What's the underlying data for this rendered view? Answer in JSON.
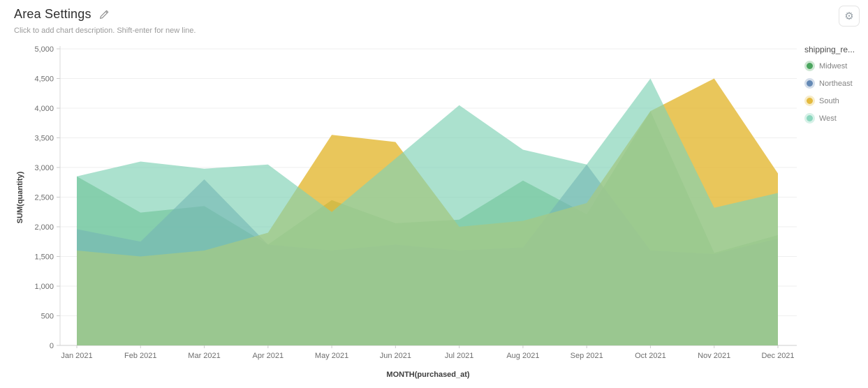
{
  "header": {
    "title": "Area Settings",
    "subtitle": "Click to add chart description. Shift-enter for new line."
  },
  "toolbar": {
    "settings_icon": "gear-icon"
  },
  "legend": {
    "title": "shipping_re...",
    "items": [
      {
        "label": "Midwest",
        "color": "#4AA55E",
        "ring": "rgba(74,165,94,0.28)"
      },
      {
        "label": "Northeast",
        "color": "#6489B5",
        "ring": "rgba(100,137,181,0.28)"
      },
      {
        "label": "South",
        "color": "#E4BA3E",
        "ring": "rgba(228,186,62,0.28)"
      },
      {
        "label": "West",
        "color": "#8CD7BE",
        "ring": "rgba(140,215,190,0.35)"
      }
    ]
  },
  "chart_data": {
    "type": "area",
    "overlap": true,
    "title": "",
    "xlabel": "MONTH(purchased_at)",
    "ylabel": "SUM(quantity)",
    "categories": [
      "Jan 2021",
      "Feb 2021",
      "Mar 2021",
      "Apr 2021",
      "May 2021",
      "Jun 2021",
      "Jul 2021",
      "Aug 2021",
      "Sep 2021",
      "Oct 2021",
      "Nov 2021",
      "Dec 2021"
    ],
    "series": [
      {
        "name": "Midwest",
        "color": "#52A863",
        "fill_opacity": 0.62,
        "values": [
          2850,
          2240,
          2350,
          1700,
          2450,
          2060,
          2120,
          2780,
          2210,
          3950,
          1560,
          1860
        ]
      },
      {
        "name": "Northeast",
        "color": "#5E83B3",
        "fill_opacity": 0.62,
        "values": [
          1960,
          1750,
          2800,
          1700,
          1600,
          1700,
          1600,
          1650,
          3050,
          1600,
          1540,
          1800
        ]
      },
      {
        "name": "South",
        "color": "#E3B832",
        "fill_opacity": 0.8,
        "values": [
          1600,
          1500,
          1600,
          1900,
          3550,
          3430,
          2000,
          2100,
          2400,
          3950,
          4500,
          2900
        ]
      },
      {
        "name": "West",
        "color": "#7FD1B5",
        "fill_opacity": 0.66,
        "values": [
          2850,
          3100,
          2980,
          3050,
          2250,
          3150,
          4050,
          3300,
          3050,
          4500,
          2320,
          2570
        ]
      }
    ],
    "ylim": [
      0,
      5000
    ],
    "ytick_step": 500,
    "ytick_labels": [
      "0",
      "500",
      "1,000",
      "1,500",
      "2,000",
      "2,500",
      "3,000",
      "3,500",
      "4,000",
      "4,500",
      "5,000"
    ],
    "grid": "horizontal",
    "legend_position": "right"
  }
}
